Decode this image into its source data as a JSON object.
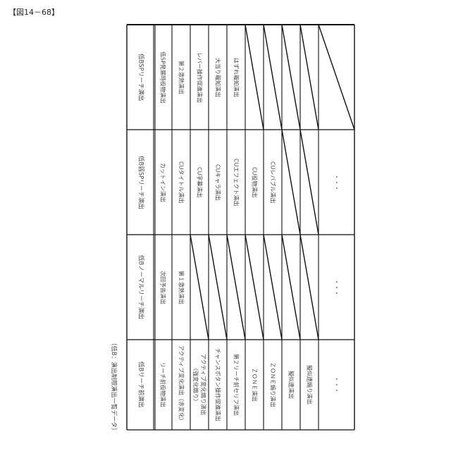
{
  "figure_label": "【図14－68】",
  "caption": "〔低B：演出制限演出一覧データ〕",
  "sections": [
    {
      "header": "低BSPリーチ演出",
      "items": [
        "低SP発展時役物演出",
        "第２激熱演出",
        "レバー操作促進演出",
        "大当り報知演出",
        "はずれ報知演出",
        null,
        null,
        null,
        null,
        null
      ]
    },
    {
      "header": "低B弱SPリーチ演出",
      "items": [
        "カットイン演出",
        "CUタイトル演出",
        "CU字幕演出",
        "CUキャラ演出",
        "CUエフェクト演出",
        "CU役物演出",
        "CUレバブル演出",
        null,
        null,
        "・・・"
      ]
    },
    {
      "header": "低Bノーマルリーチ演出",
      "items": [
        "次回予告演出",
        "第１激熱演出",
        null,
        null,
        null,
        null,
        null,
        null,
        null,
        "・・・"
      ]
    },
    {
      "header": "低Bリーチ前演出",
      "items": [
        "リーチ前役物演出",
        "アクティブ変化演出（赤変化）",
        "アクティブ変化煽り演出\n（強変化煽り）",
        "チャンスボタン操作促進演出",
        "第２リーチ前セリフ演出",
        "ＺＯＮＥ演出",
        "ＺＯＮＥ煽り演出",
        "擬似連演出",
        "擬似連煽り演出",
        "・・・"
      ]
    }
  ]
}
